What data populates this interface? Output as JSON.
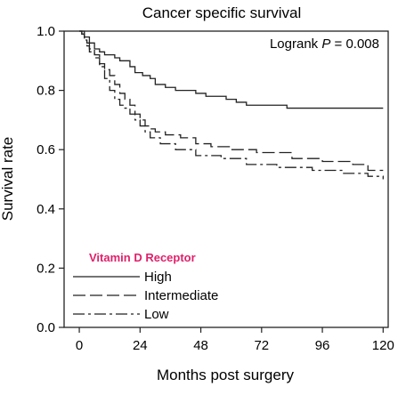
{
  "chart_data": {
    "type": "line",
    "title": "Cancer specific survival",
    "xlabel": "Months post surgery",
    "ylabel": "Survival rate",
    "xlim": [
      -6,
      122
    ],
    "ylim": [
      0,
      1.0
    ],
    "xticks": [
      0,
      24,
      48,
      72,
      96,
      120
    ],
    "xtick_labels": [
      "0",
      "24",
      "48",
      "72",
      "96",
      "120"
    ],
    "yticks": [
      0.0,
      0.2,
      0.4,
      0.6,
      0.8,
      1.0
    ],
    "ytick_labels": [
      "0.0",
      "0.2",
      "0.4",
      "0.6",
      "0.8",
      "1.0"
    ],
    "grid": false,
    "step": true,
    "annotation": {
      "prefix": "Logrank ",
      "p_symbol": "P",
      "suffix": " = 0.008"
    },
    "legend": {
      "title": "Vitamin D Receptor",
      "placement": "lower-left"
    },
    "series": [
      {
        "name": "High",
        "dash": "solid",
        "x": [
          0,
          2,
          4,
          6,
          8,
          10,
          14,
          16,
          20,
          22,
          25,
          28,
          30,
          34,
          38,
          46,
          50,
          58,
          62,
          66,
          82,
          92,
          98,
          110,
          120
        ],
        "y": [
          1.0,
          0.98,
          0.96,
          0.94,
          0.93,
          0.92,
          0.91,
          0.9,
          0.88,
          0.86,
          0.85,
          0.84,
          0.82,
          0.81,
          0.8,
          0.79,
          0.78,
          0.77,
          0.76,
          0.75,
          0.74,
          0.74,
          0.74,
          0.74,
          0.74
        ]
      },
      {
        "name": "Intermediate",
        "dash": "long-dash",
        "x": [
          0,
          1,
          2,
          3,
          4,
          6,
          8,
          10,
          12,
          14,
          16,
          18,
          20,
          22,
          24,
          26,
          28,
          30,
          34,
          40,
          46,
          52,
          60,
          70,
          84,
          96,
          108,
          114,
          120
        ],
        "y": [
          1.0,
          0.99,
          0.97,
          0.96,
          0.94,
          0.92,
          0.89,
          0.87,
          0.85,
          0.82,
          0.79,
          0.77,
          0.75,
          0.72,
          0.7,
          0.68,
          0.67,
          0.66,
          0.65,
          0.64,
          0.62,
          0.61,
          0.6,
          0.59,
          0.57,
          0.56,
          0.55,
          0.53,
          0.53
        ]
      },
      {
        "name": "Low",
        "dash": "dash-dot",
        "x": [
          0,
          1,
          2,
          3,
          4,
          6,
          8,
          10,
          12,
          14,
          16,
          18,
          20,
          22,
          24,
          26,
          28,
          32,
          38,
          46,
          56,
          66,
          78,
          92,
          104,
          114,
          120
        ],
        "y": [
          1.0,
          0.99,
          0.97,
          0.95,
          0.93,
          0.91,
          0.88,
          0.84,
          0.8,
          0.77,
          0.75,
          0.74,
          0.72,
          0.7,
          0.68,
          0.66,
          0.64,
          0.62,
          0.6,
          0.58,
          0.57,
          0.55,
          0.54,
          0.53,
          0.52,
          0.51,
          0.5
        ]
      }
    ]
  }
}
